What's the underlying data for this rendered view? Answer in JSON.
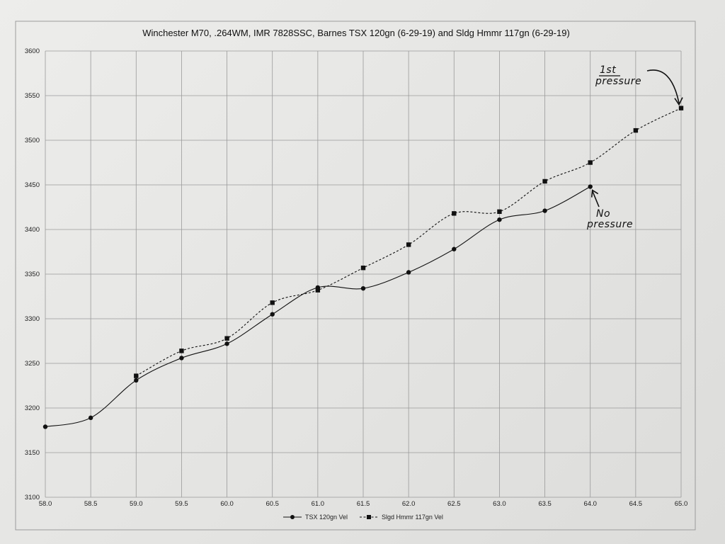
{
  "chart_data": {
    "type": "line",
    "title": "Winchester M70, .264WM, IMR 7828SSC, Barnes TSX 120gn (6-29-19) and Sldg Hmmr 117gn (6-29-19)",
    "xlabel": "",
    "ylabel": "",
    "xlim": [
      58.0,
      65.0
    ],
    "ylim": [
      3100,
      3600
    ],
    "x_ticks": [
      "58.0",
      "58.5",
      "59.0",
      "59.5",
      "60.0",
      "60.5",
      "61.0",
      "61.5",
      "62.0",
      "62.5",
      "63.0",
      "63.5",
      "64.0",
      "64.5",
      "65.0"
    ],
    "y_ticks": [
      "3600",
      "3550",
      "3500",
      "3450",
      "3400",
      "3350",
      "3300",
      "3250",
      "3200",
      "3150",
      "3100"
    ],
    "grid": true,
    "legend_position": "bottom-center",
    "series": [
      {
        "name": "TSX 120gn Vel",
        "marker": "circle",
        "line_style": "solid",
        "x": [
          58.0,
          58.5,
          59.0,
          59.5,
          60.0,
          60.5,
          61.0,
          61.5,
          62.0,
          62.5,
          63.0,
          63.5,
          64.0
        ],
        "values": [
          3179,
          3189,
          3231,
          3256,
          3272,
          3305,
          3335,
          3334,
          3352,
          3378,
          3411,
          3421,
          3448
        ]
      },
      {
        "name": "Slgd Hmmr 117gn Vel",
        "marker": "square",
        "line_style": "dashed",
        "x": [
          59.0,
          59.5,
          60.0,
          60.5,
          61.0,
          61.5,
          62.0,
          62.5,
          63.0,
          63.5,
          64.0,
          64.5,
          65.0
        ],
        "values": [
          3236,
          3264,
          3278,
          3318,
          3332,
          3357,
          3383,
          3418,
          3420,
          3454,
          3475,
          3511,
          3536
        ]
      }
    ],
    "annotations": [
      {
        "text": "1st",
        "text2": "pressure",
        "target_series": 1,
        "target_x": 65.0
      },
      {
        "text": "No",
        "text2": "pressure",
        "target_series": 0,
        "target_x": 64.0
      }
    ],
    "colors": {
      "line": "#111111",
      "grid": "#9a9a9a",
      "paper": "#ebebe9"
    }
  }
}
